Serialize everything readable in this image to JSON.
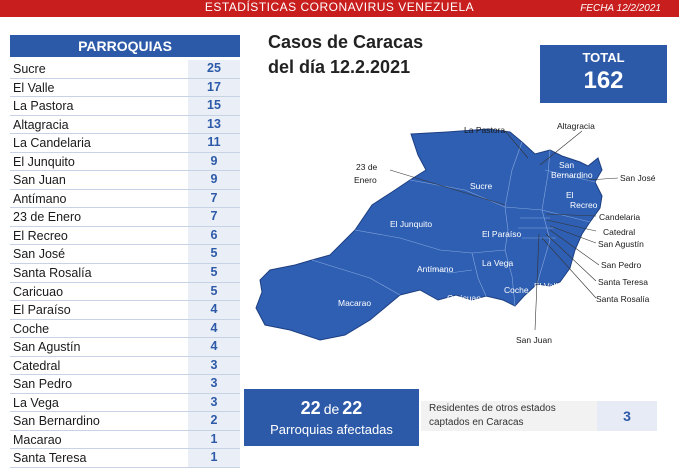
{
  "header": {
    "title": "ESTADÍSTICAS CORONAVIRUS VENEZUELA",
    "date": "FECHA 12/2/2021",
    "colors": {
      "bar": "#c81e1e",
      "accent": "#2d5aa8"
    }
  },
  "parroquias": {
    "heading": "PARROQUIAS",
    "rows": [
      {
        "name": "Sucre",
        "count": "25"
      },
      {
        "name": "El Valle",
        "count": "17"
      },
      {
        "name": "La Pastora",
        "count": "15"
      },
      {
        "name": "Altagracia",
        "count": "13"
      },
      {
        "name": "La Candelaria",
        "count": "11"
      },
      {
        "name": "El Junquito",
        "count": "9"
      },
      {
        "name": "San Juan",
        "count": "9"
      },
      {
        "name": "Antímano",
        "count": "7"
      },
      {
        "name": "23 de Enero",
        "count": "7"
      },
      {
        "name": "El Recreo",
        "count": "6"
      },
      {
        "name": "San José",
        "count": "5"
      },
      {
        "name": "Santa Rosalía",
        "count": "5"
      },
      {
        "name": "Caricuao",
        "count": "5"
      },
      {
        "name": "El Paraíso",
        "count": "4"
      },
      {
        "name": "Coche",
        "count": "4"
      },
      {
        "name": "San Agustín",
        "count": "4"
      },
      {
        "name": "Catedral",
        "count": "3"
      },
      {
        "name": "San Pedro",
        "count": "3"
      },
      {
        "name": "La Vega",
        "count": "3"
      },
      {
        "name": "San Bernardino",
        "count": "2"
      },
      {
        "name": "Macarao",
        "count": "1"
      },
      {
        "name": "Santa Teresa",
        "count": "1"
      }
    ]
  },
  "headline": {
    "line1": "Casos de Caracas",
    "line2": "del día 12.2.2021"
  },
  "total": {
    "label": "TOTAL",
    "value": "162"
  },
  "map": {
    "inner_labels": {
      "sucre": "Sucre",
      "el_junquito": "El Junquito",
      "antimano": "Antímano",
      "macarao": "Macarao",
      "caricuao": "Caricuao",
      "el_paraiso": "El Paraíso",
      "la_vega": "La Vega",
      "coche": "Coche",
      "el_valle": "El Valle",
      "san_bernardino_1": "San",
      "san_bernardino_2": "Bernardino",
      "el_recreo_1": "El",
      "el_recreo_2": "Recreo"
    },
    "callouts": {
      "la_pastora": "La Pastora",
      "altagracia": "Altagracia",
      "enero_1": "23 de",
      "enero_2": "Enero",
      "san_jose": "San José",
      "candelaria": "Candelaria",
      "catedral": "Catedral",
      "san_agustin": "San Agustín",
      "san_pedro": "San Pedro",
      "santa_teresa": "Santa Teresa",
      "santa_rosalia": "Santa Rosalía",
      "san_juan": "San Juan"
    }
  },
  "afectadas": {
    "count": "22",
    "de": "de",
    "of": "22",
    "label": "Parroquias afectadas"
  },
  "residentes": {
    "text": "Residentes de otros estados captados en Caracas",
    "value": "3"
  }
}
